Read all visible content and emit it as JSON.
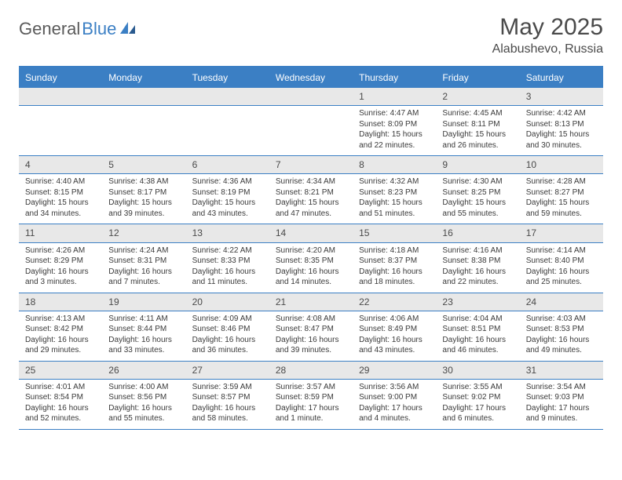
{
  "logo": {
    "text1": "General",
    "text2": "Blue"
  },
  "title": "May 2025",
  "location": "Alabushevo, Russia",
  "colors": {
    "header_bg": "#3b7fc4",
    "header_text": "#ffffff",
    "daynum_bg": "#e8e8e8",
    "border": "#3b7fc4",
    "body_text": "#3a3a3a",
    "title_text": "#4a4a4a",
    "logo_gray": "#5a5a5a",
    "logo_blue": "#3b7fc4"
  },
  "dayHeaders": [
    "Sunday",
    "Monday",
    "Tuesday",
    "Wednesday",
    "Thursday",
    "Friday",
    "Saturday"
  ],
  "weeks": [
    [
      {
        "n": "",
        "sr": "",
        "ss": "",
        "dl1": "",
        "dl2": ""
      },
      {
        "n": "",
        "sr": "",
        "ss": "",
        "dl1": "",
        "dl2": ""
      },
      {
        "n": "",
        "sr": "",
        "ss": "",
        "dl1": "",
        "dl2": ""
      },
      {
        "n": "",
        "sr": "",
        "ss": "",
        "dl1": "",
        "dl2": ""
      },
      {
        "n": "1",
        "sr": "Sunrise: 4:47 AM",
        "ss": "Sunset: 8:09 PM",
        "dl1": "Daylight: 15 hours",
        "dl2": "and 22 minutes."
      },
      {
        "n": "2",
        "sr": "Sunrise: 4:45 AM",
        "ss": "Sunset: 8:11 PM",
        "dl1": "Daylight: 15 hours",
        "dl2": "and 26 minutes."
      },
      {
        "n": "3",
        "sr": "Sunrise: 4:42 AM",
        "ss": "Sunset: 8:13 PM",
        "dl1": "Daylight: 15 hours",
        "dl2": "and 30 minutes."
      }
    ],
    [
      {
        "n": "4",
        "sr": "Sunrise: 4:40 AM",
        "ss": "Sunset: 8:15 PM",
        "dl1": "Daylight: 15 hours",
        "dl2": "and 34 minutes."
      },
      {
        "n": "5",
        "sr": "Sunrise: 4:38 AM",
        "ss": "Sunset: 8:17 PM",
        "dl1": "Daylight: 15 hours",
        "dl2": "and 39 minutes."
      },
      {
        "n": "6",
        "sr": "Sunrise: 4:36 AM",
        "ss": "Sunset: 8:19 PM",
        "dl1": "Daylight: 15 hours",
        "dl2": "and 43 minutes."
      },
      {
        "n": "7",
        "sr": "Sunrise: 4:34 AM",
        "ss": "Sunset: 8:21 PM",
        "dl1": "Daylight: 15 hours",
        "dl2": "and 47 minutes."
      },
      {
        "n": "8",
        "sr": "Sunrise: 4:32 AM",
        "ss": "Sunset: 8:23 PM",
        "dl1": "Daylight: 15 hours",
        "dl2": "and 51 minutes."
      },
      {
        "n": "9",
        "sr": "Sunrise: 4:30 AM",
        "ss": "Sunset: 8:25 PM",
        "dl1": "Daylight: 15 hours",
        "dl2": "and 55 minutes."
      },
      {
        "n": "10",
        "sr": "Sunrise: 4:28 AM",
        "ss": "Sunset: 8:27 PM",
        "dl1": "Daylight: 15 hours",
        "dl2": "and 59 minutes."
      }
    ],
    [
      {
        "n": "11",
        "sr": "Sunrise: 4:26 AM",
        "ss": "Sunset: 8:29 PM",
        "dl1": "Daylight: 16 hours",
        "dl2": "and 3 minutes."
      },
      {
        "n": "12",
        "sr": "Sunrise: 4:24 AM",
        "ss": "Sunset: 8:31 PM",
        "dl1": "Daylight: 16 hours",
        "dl2": "and 7 minutes."
      },
      {
        "n": "13",
        "sr": "Sunrise: 4:22 AM",
        "ss": "Sunset: 8:33 PM",
        "dl1": "Daylight: 16 hours",
        "dl2": "and 11 minutes."
      },
      {
        "n": "14",
        "sr": "Sunrise: 4:20 AM",
        "ss": "Sunset: 8:35 PM",
        "dl1": "Daylight: 16 hours",
        "dl2": "and 14 minutes."
      },
      {
        "n": "15",
        "sr": "Sunrise: 4:18 AM",
        "ss": "Sunset: 8:37 PM",
        "dl1": "Daylight: 16 hours",
        "dl2": "and 18 minutes."
      },
      {
        "n": "16",
        "sr": "Sunrise: 4:16 AM",
        "ss": "Sunset: 8:38 PM",
        "dl1": "Daylight: 16 hours",
        "dl2": "and 22 minutes."
      },
      {
        "n": "17",
        "sr": "Sunrise: 4:14 AM",
        "ss": "Sunset: 8:40 PM",
        "dl1": "Daylight: 16 hours",
        "dl2": "and 25 minutes."
      }
    ],
    [
      {
        "n": "18",
        "sr": "Sunrise: 4:13 AM",
        "ss": "Sunset: 8:42 PM",
        "dl1": "Daylight: 16 hours",
        "dl2": "and 29 minutes."
      },
      {
        "n": "19",
        "sr": "Sunrise: 4:11 AM",
        "ss": "Sunset: 8:44 PM",
        "dl1": "Daylight: 16 hours",
        "dl2": "and 33 minutes."
      },
      {
        "n": "20",
        "sr": "Sunrise: 4:09 AM",
        "ss": "Sunset: 8:46 PM",
        "dl1": "Daylight: 16 hours",
        "dl2": "and 36 minutes."
      },
      {
        "n": "21",
        "sr": "Sunrise: 4:08 AM",
        "ss": "Sunset: 8:47 PM",
        "dl1": "Daylight: 16 hours",
        "dl2": "and 39 minutes."
      },
      {
        "n": "22",
        "sr": "Sunrise: 4:06 AM",
        "ss": "Sunset: 8:49 PM",
        "dl1": "Daylight: 16 hours",
        "dl2": "and 43 minutes."
      },
      {
        "n": "23",
        "sr": "Sunrise: 4:04 AM",
        "ss": "Sunset: 8:51 PM",
        "dl1": "Daylight: 16 hours",
        "dl2": "and 46 minutes."
      },
      {
        "n": "24",
        "sr": "Sunrise: 4:03 AM",
        "ss": "Sunset: 8:53 PM",
        "dl1": "Daylight: 16 hours",
        "dl2": "and 49 minutes."
      }
    ],
    [
      {
        "n": "25",
        "sr": "Sunrise: 4:01 AM",
        "ss": "Sunset: 8:54 PM",
        "dl1": "Daylight: 16 hours",
        "dl2": "and 52 minutes."
      },
      {
        "n": "26",
        "sr": "Sunrise: 4:00 AM",
        "ss": "Sunset: 8:56 PM",
        "dl1": "Daylight: 16 hours",
        "dl2": "and 55 minutes."
      },
      {
        "n": "27",
        "sr": "Sunrise: 3:59 AM",
        "ss": "Sunset: 8:57 PM",
        "dl1": "Daylight: 16 hours",
        "dl2": "and 58 minutes."
      },
      {
        "n": "28",
        "sr": "Sunrise: 3:57 AM",
        "ss": "Sunset: 8:59 PM",
        "dl1": "Daylight: 17 hours",
        "dl2": "and 1 minute."
      },
      {
        "n": "29",
        "sr": "Sunrise: 3:56 AM",
        "ss": "Sunset: 9:00 PM",
        "dl1": "Daylight: 17 hours",
        "dl2": "and 4 minutes."
      },
      {
        "n": "30",
        "sr": "Sunrise: 3:55 AM",
        "ss": "Sunset: 9:02 PM",
        "dl1": "Daylight: 17 hours",
        "dl2": "and 6 minutes."
      },
      {
        "n": "31",
        "sr": "Sunrise: 3:54 AM",
        "ss": "Sunset: 9:03 PM",
        "dl1": "Daylight: 17 hours",
        "dl2": "and 9 minutes."
      }
    ]
  ]
}
